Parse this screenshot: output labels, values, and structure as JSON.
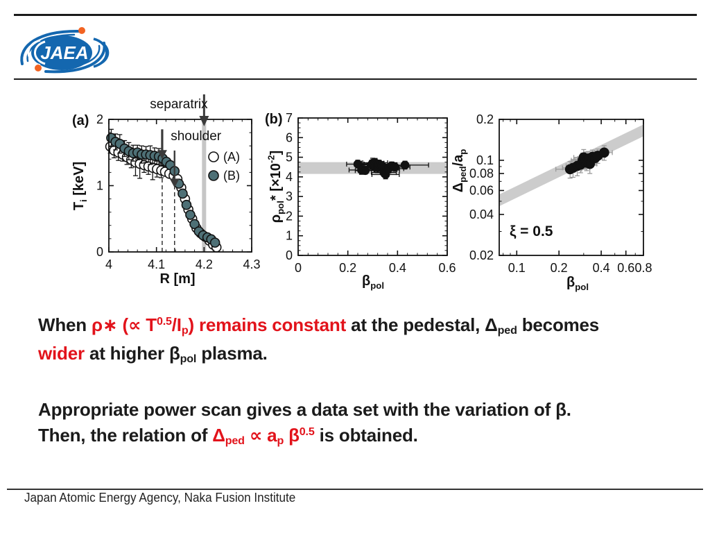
{
  "header": {
    "logo_text": "JAEA"
  },
  "footer": {
    "text": "Japan Atomic Energy Agency, Naka Fusion Institute"
  },
  "colors": {
    "red_text": "#e2131b",
    "black_text": "#1b1b1b",
    "logo_blue": "#1467af",
    "logo_orange": "#f26322",
    "marker_open": "#ffffff",
    "marker_b": "#4e7076",
    "marker_black": "#111111",
    "band_gray": "#cccccc",
    "separatrix_band": "#c6c6c6"
  },
  "statements": [
    {
      "lines": [
        [
          {
            "t": "When "
          },
          {
            "t": "ρ∗ (∝ T",
            "c": "r"
          },
          {
            "t": "0.5",
            "c": "r",
            "s": "sup"
          },
          {
            "t": "/I",
            "c": "r"
          },
          {
            "t": "p",
            "c": "r",
            "s": "sub"
          },
          {
            "t": ") remains constant",
            "c": "r"
          },
          {
            "t": " at the pedestal, "
          },
          {
            "t": "Δ"
          },
          {
            "t": "ped",
            "s": "sub"
          },
          {
            "t": " becomes"
          }
        ],
        [
          {
            "t": "wider",
            "c": "r"
          },
          {
            "t": " at higher β"
          },
          {
            "t": "pol",
            "s": "sub"
          },
          {
            "t": " plasma."
          }
        ]
      ]
    },
    {
      "lines": [
        [
          {
            "t": "Appropriate power scan gives a data set with the variation of β."
          }
        ],
        [
          {
            "t": "Then, the relation of "
          },
          {
            "t": "Δ",
            "c": "r"
          },
          {
            "t": "ped",
            "c": "r",
            "s": "sub"
          },
          {
            "t": " ∝ a",
            "c": "r"
          },
          {
            "t": "p",
            "c": "r",
            "s": "sub"
          },
          {
            "t": " β",
            "c": "r"
          },
          {
            "t": "0.5",
            "c": "r",
            "s": "sup"
          },
          {
            "t": " is obtained."
          }
        ]
      ]
    }
  ],
  "chart_data": [
    {
      "id": "a",
      "type": "scatter",
      "panel_label": "(a)",
      "xlabel": [
        {
          "t": "R [m]"
        }
      ],
      "ylabel": [
        {
          "t": "T"
        },
        {
          "t": "i",
          "s": "sub"
        },
        {
          "t": " [keV]"
        }
      ],
      "xlim": [
        4.0,
        4.3
      ],
      "ylim": [
        0,
        2
      ],
      "xticks": [
        {
          "v": 4.0,
          "l": "4"
        },
        {
          "v": 4.1,
          "l": "4.1"
        },
        {
          "v": 4.2,
          "l": "4.2"
        },
        {
          "v": 4.3,
          "l": "4.3"
        }
      ],
      "yticks": [
        {
          "v": 0,
          "l": "0"
        },
        {
          "v": 1,
          "l": "1"
        },
        {
          "v": 2,
          "l": "2"
        }
      ],
      "xminor": 0.02,
      "yminor": 0.2,
      "bands": [
        {
          "type": "v",
          "x": 4.2,
          "w": 6,
          "color": "#c6c6c6"
        }
      ],
      "dashed": [
        {
          "x": 4.112,
          "to": 1.4
        },
        {
          "x": 4.138,
          "to": 1.22
        }
      ],
      "series": [
        {
          "name": "(A)",
          "marker": "open",
          "color": "#ffffff",
          "points": [
            [
              4.003,
              1.59,
              0.1
            ],
            [
              4.011,
              1.53,
              0.11
            ],
            [
              4.02,
              1.5,
              0.12
            ],
            [
              4.029,
              1.47,
              0.1
            ],
            [
              4.038,
              1.43,
              0.11
            ],
            [
              4.047,
              1.39,
              0.12
            ],
            [
              4.056,
              1.35,
              0.2
            ],
            [
              4.065,
              1.33,
              0.22
            ],
            [
              4.074,
              1.31,
              0.11
            ],
            [
              4.083,
              1.29,
              0.12
            ],
            [
              4.092,
              1.27,
              0.18
            ],
            [
              4.101,
              1.25,
              0.12
            ],
            [
              4.11,
              1.23,
              0.11
            ],
            [
              4.118,
              1.21,
              0
            ],
            [
              4.127,
              1.18,
              0
            ],
            [
              4.136,
              1.15,
              0
            ],
            [
              4.144,
              1.1,
              0
            ],
            [
              4.152,
              0.97,
              0
            ],
            [
              4.16,
              0.8,
              0
            ],
            [
              4.167,
              0.64,
              0
            ],
            [
              4.175,
              0.5,
              0
            ],
            [
              4.184,
              0.36,
              0
            ],
            [
              4.193,
              0.28,
              0
            ],
            [
              4.202,
              0.23,
              0
            ],
            [
              4.211,
              0.17,
              0
            ],
            [
              4.219,
              0.11,
              0
            ],
            [
              4.226,
              0.07,
              0
            ]
          ]
        },
        {
          "name": "(B)",
          "marker": "filled",
          "color": "#4e7076",
          "points": [
            [
              4.005,
              1.72,
              0.13
            ],
            [
              4.014,
              1.66,
              0.12
            ],
            [
              4.023,
              1.63,
              0.14
            ],
            [
              4.033,
              1.56,
              0.12
            ],
            [
              4.042,
              1.52,
              0.13
            ],
            [
              4.051,
              1.49,
              0.12
            ],
            [
              4.06,
              1.5,
              0.11
            ],
            [
              4.069,
              1.47,
              0.13
            ],
            [
              4.078,
              1.47,
              0.12
            ],
            [
              4.087,
              1.46,
              0.14
            ],
            [
              4.096,
              1.45,
              0.12
            ],
            [
              4.105,
              1.44,
              0.12
            ],
            [
              4.113,
              1.41,
              0.11
            ],
            [
              4.121,
              1.36,
              0
            ],
            [
              4.129,
              1.31,
              0
            ],
            [
              4.138,
              1.22,
              0
            ],
            [
              4.147,
              1.03,
              0
            ],
            [
              4.155,
              0.88,
              0
            ],
            [
              4.163,
              0.71,
              0
            ],
            [
              4.171,
              0.56,
              0
            ],
            [
              4.18,
              0.42,
              0
            ],
            [
              4.189,
              0.31,
              0
            ],
            [
              4.198,
              0.25,
              0
            ],
            [
              4.207,
              0.22,
              0
            ],
            [
              4.215,
              0.19,
              0
            ],
            [
              4.223,
              0.14,
              0
            ]
          ]
        }
      ],
      "legend": [
        {
          "label": "(A)",
          "marker": "open",
          "color": "#ffffff"
        },
        {
          "label": "(B)",
          "marker": "filled",
          "color": "#4e7076"
        }
      ],
      "annotations": {
        "separatrix": {
          "label": "separatrix",
          "x": 4.2,
          "label_x": 4.147
        },
        "shoulder": {
          "label": "shoulder",
          "label_x": 4.183,
          "label_y": 1.75
        },
        "arrows": [
          {
            "x": 4.112,
            "tail": 1.85,
            "tip": 1.4,
            "thick": true
          },
          {
            "x": 4.138,
            "tail": 1.53,
            "tip": 0.97,
            "thick": false
          }
        ]
      }
    },
    {
      "id": "b",
      "type": "scatter",
      "panel_label": "(b)",
      "xlabel": [
        {
          "t": "β"
        },
        {
          "t": "pol",
          "s": "sub"
        }
      ],
      "ylabel": [
        {
          "t": "ρ"
        },
        {
          "t": "pol",
          "s": "sub"
        },
        {
          "t": "* [×10"
        },
        {
          "t": "-2",
          "s": "sup"
        },
        {
          "t": "]"
        }
      ],
      "xlim": [
        0,
        0.6
      ],
      "ylim": [
        0,
        7
      ],
      "xticks": [
        {
          "v": 0,
          "l": "0"
        },
        {
          "v": 0.2,
          "l": "0.2"
        },
        {
          "v": 0.4,
          "l": "0.4"
        },
        {
          "v": 0.6,
          "l": "0.6"
        }
      ],
      "yticks": [
        {
          "v": 0,
          "l": "0"
        },
        {
          "v": 1,
          "l": "1"
        },
        {
          "v": 2,
          "l": "2"
        },
        {
          "v": 3,
          "l": "3"
        },
        {
          "v": 4,
          "l": "4"
        },
        {
          "v": 5,
          "l": "5"
        },
        {
          "v": 6,
          "l": "6"
        },
        {
          "v": 7,
          "l": "7"
        }
      ],
      "xminor": 0.04,
      "yminor": 0.25,
      "bands": [
        {
          "type": "h",
          "y1": 4.15,
          "y2": 4.75,
          "color": "#cccccc"
        }
      ],
      "points": [
        [
          0.24,
          4.65,
          0.045,
          0.2
        ],
        [
          0.255,
          4.35,
          0.05,
          0.22
        ],
        [
          0.27,
          4.32,
          0.04,
          0.18
        ],
        [
          0.295,
          4.62,
          0.05,
          0.22
        ],
        [
          0.3,
          4.7,
          0.045,
          0.25
        ],
        [
          0.305,
          4.55,
          0.06,
          0.2
        ],
        [
          0.31,
          4.72,
          0.05,
          0.22
        ],
        [
          0.315,
          4.62,
          0.055,
          0.2
        ],
        [
          0.32,
          4.46,
          0.05,
          0.25
        ],
        [
          0.326,
          4.65,
          0.06,
          0.2
        ],
        [
          0.332,
          4.6,
          0.05,
          0.18
        ],
        [
          0.338,
          4.56,
          0.06,
          0.22
        ],
        [
          0.345,
          4.22,
          0.05,
          0.2
        ],
        [
          0.352,
          4.12,
          0.055,
          0.22
        ],
        [
          0.358,
          4.35,
          0.05,
          0.2
        ],
        [
          0.365,
          4.42,
          0.06,
          0.22
        ],
        [
          0.376,
          4.56,
          0.055,
          0.2
        ],
        [
          0.39,
          4.5,
          0.06,
          0.22
        ],
        [
          0.43,
          4.6,
          0.095,
          0.2
        ]
      ]
    },
    {
      "id": "c",
      "type": "scatter",
      "panel_label": "",
      "xlabel": [
        {
          "t": "β"
        },
        {
          "t": "pol",
          "s": "sub"
        }
      ],
      "ylabel": [
        {
          "t": "Δ"
        },
        {
          "t": "ped",
          "s": "sub"
        },
        {
          "t": "/a"
        },
        {
          "t": "p",
          "s": "sub"
        }
      ],
      "xscale": "log",
      "yscale": "log",
      "xlim": [
        0.075,
        0.8
      ],
      "ylim": [
        0.02,
        0.2
      ],
      "xticks": [
        {
          "v": 0.1,
          "l": "0.1"
        },
        {
          "v": 0.2,
          "l": "0.2"
        },
        {
          "v": 0.4,
          "l": "0.4"
        },
        {
          "v": 0.6,
          "l": "0.6"
        },
        {
          "v": 0.8,
          "l": "0.8"
        }
      ],
      "yticks": [
        {
          "v": 0.02,
          "l": "0.02"
        },
        {
          "v": 0.04,
          "l": "0.04"
        },
        {
          "v": 0.06,
          "l": "0.06"
        },
        {
          "v": 0.08,
          "l": "0.08"
        },
        {
          "v": 0.1,
          "l": "0.1"
        },
        {
          "v": 0.2,
          "l": "0.2"
        }
      ],
      "xminor_list": [
        0.08,
        0.09,
        0.3,
        0.5,
        0.7
      ],
      "yminor_list": [
        0.03,
        0.05,
        0.07,
        0.09
      ],
      "bands": [
        {
          "type": "power",
          "k_lo": 0.168,
          "k_hi": 0.205,
          "color": "#cccccc"
        }
      ],
      "err_color": "#9a9a9a",
      "note": {
        "label": "ξ = 0.5"
      },
      "points": [
        [
          0.24,
          0.086,
          0.05,
          0.012
        ],
        [
          0.252,
          0.088,
          0.04,
          0.013
        ],
        [
          0.27,
          0.091,
          0.045,
          0.014
        ],
        [
          0.285,
          0.093,
          0.04,
          0.012
        ],
        [
          0.295,
          0.1,
          0.05,
          0.013
        ],
        [
          0.3,
          0.105,
          0.045,
          0.015
        ],
        [
          0.305,
          0.098,
          0.04,
          0.012
        ],
        [
          0.31,
          0.101,
          0.05,
          0.014
        ],
        [
          0.315,
          0.096,
          0.045,
          0.012
        ],
        [
          0.322,
          0.103,
          0.05,
          0.013
        ],
        [
          0.332,
          0.094,
          0.04,
          0.014
        ],
        [
          0.346,
          0.106,
          0.05,
          0.013
        ],
        [
          0.362,
          0.104,
          0.045,
          0.012
        ],
        [
          0.378,
          0.108,
          0.05,
          0.013
        ],
        [
          0.42,
          0.114,
          0.06,
          0.014
        ]
      ]
    }
  ]
}
